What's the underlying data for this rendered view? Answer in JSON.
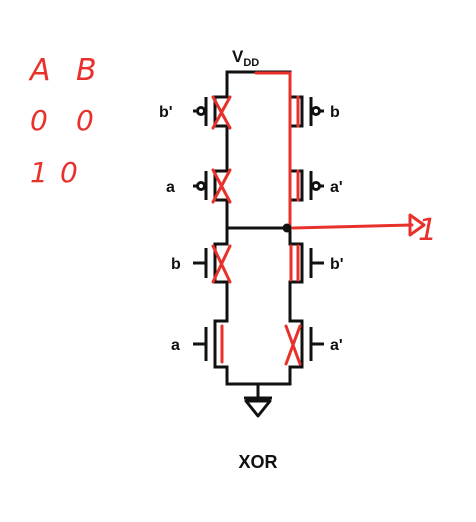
{
  "title": "XOR",
  "vdd": {
    "main": "V",
    "sub": "DD"
  },
  "transistors": {
    "left_1": "b'",
    "right_1": "b",
    "left_2": "a",
    "right_2": "a'",
    "left_3": "b",
    "right_3": "b'",
    "left_4": "a",
    "right_4": "a'"
  },
  "truth_table": {
    "header_a": "A",
    "header_b": "B",
    "row1_a": "0",
    "row1_b": "0",
    "row2_a": "1",
    "row2_b": "0"
  },
  "output_value": "1",
  "colors": {
    "wire": "#111111",
    "annotation": "#e8312b"
  }
}
